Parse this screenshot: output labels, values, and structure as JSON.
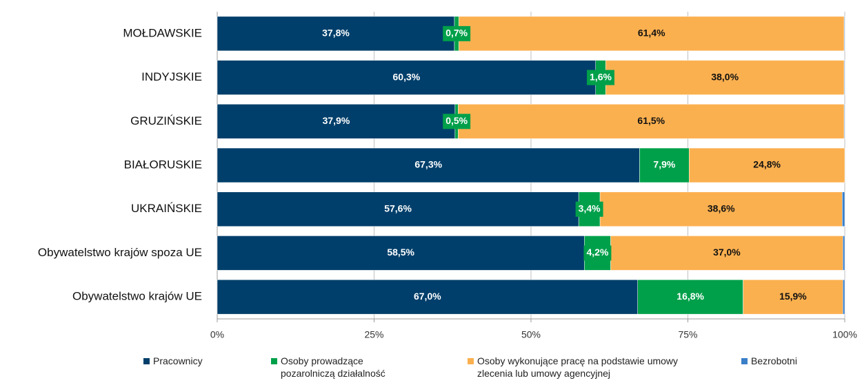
{
  "chart_data": {
    "type": "stacked-bar-horizontal",
    "categories": [
      "MOŁDAWSKIE",
      "INDYJSKIE",
      "GRUZIŃSKIE",
      "BIAŁORUSKIE",
      "UKRAIŃSKIE",
      "Obywatelstwo krajów spoza UE",
      "Obywatelstwo krajów UE"
    ],
    "series": [
      {
        "name": "Pracownicy",
        "color": "#003f6b",
        "values": [
          37.8,
          60.3,
          37.9,
          67.3,
          57.6,
          58.5,
          67.0
        ],
        "value_labels": [
          "37,8%",
          "60,3%",
          "37,9%",
          "67,3%",
          "57,6%",
          "58,5%",
          "67,0%"
        ]
      },
      {
        "name": "Osoby prowadzące pozarolniczą działalność",
        "color": "#00a04a",
        "values": [
          0.7,
          1.6,
          0.5,
          7.9,
          3.4,
          4.2,
          16.8
        ],
        "value_labels": [
          "0,7%",
          "1,6%",
          "0,5%",
          "7,9%",
          "3,4%",
          "4,2%",
          "16,8%"
        ]
      },
      {
        "name": "Osoby wykonujące pracę na podstawie umowy zlecenia lub umowy agencyjnej",
        "color": "#fbb04f",
        "values": [
          61.4,
          38.0,
          61.5,
          24.8,
          38.6,
          37.0,
          15.9
        ],
        "value_labels": [
          "61,4%",
          "38,0%",
          "61,5%",
          "24,8%",
          "38,6%",
          "37,0%",
          "15,9%"
        ]
      },
      {
        "name": "Bezrobotni",
        "color": "#3a7fc8",
        "values": [
          0.1,
          0.1,
          0.1,
          0.0,
          0.4,
          0.3,
          0.3
        ]
      }
    ],
    "xlim": [
      0,
      100
    ],
    "xticks": [
      {
        "value": 0,
        "label": "0%"
      },
      {
        "value": 25,
        "label": "25%"
      },
      {
        "value": 50,
        "label": "50%"
      },
      {
        "value": 75,
        "label": "75%"
      },
      {
        "value": 100,
        "label": "100%"
      }
    ],
    "grid": true,
    "legend": "bottom"
  }
}
